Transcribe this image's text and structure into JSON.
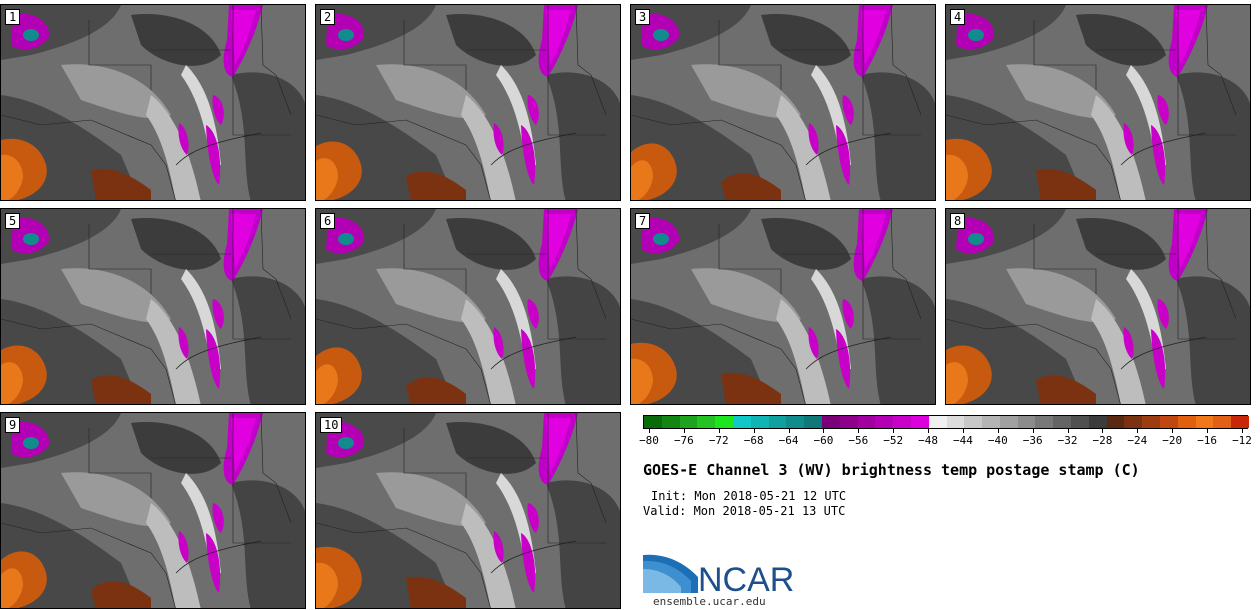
{
  "panels": [
    {
      "label": "1"
    },
    {
      "label": "2"
    },
    {
      "label": "3"
    },
    {
      "label": "4"
    },
    {
      "label": "5"
    },
    {
      "label": "6"
    },
    {
      "label": "7"
    },
    {
      "label": "8"
    },
    {
      "label": "9"
    },
    {
      "label": "10"
    }
  ],
  "colorbar": {
    "colors": [
      "#0a6b0a",
      "#128512",
      "#1ea31e",
      "#22c322",
      "#1ee61e",
      "#10c8c8",
      "#10b4b4",
      "#10a0a0",
      "#108c8c",
      "#107878",
      "#7a007a",
      "#8c008c",
      "#a000a0",
      "#b400b4",
      "#c800c8",
      "#dc00dc",
      "#f0f0f0",
      "#dcdcdc",
      "#c8c8c8",
      "#b4b4b4",
      "#a0a0a0",
      "#8c8c8c",
      "#787878",
      "#646464",
      "#505050",
      "#3c3c3c",
      "#5a2a10",
      "#7a3210",
      "#9c3c10",
      "#c04810",
      "#e06010",
      "#f07818",
      "#e06018",
      "#c82808"
    ],
    "tick_labels": [
      "−80",
      "−76",
      "−72",
      "−68",
      "−64",
      "−60",
      "−56",
      "−52",
      "−48",
      "−44",
      "−40",
      "−36",
      "−32",
      "−28",
      "−24",
      "−20",
      "−16",
      "−12"
    ]
  },
  "title": "GOES-E Channel 3 (WV) brightness temp postage stamp (C)",
  "init": "Init: Mon 2018-05-21 12 UTC",
  "valid": "Valid: Mon 2018-05-21 13 UTC",
  "logo": {
    "text": "NCAR",
    "url": "ensemble.ucar.edu"
  }
}
